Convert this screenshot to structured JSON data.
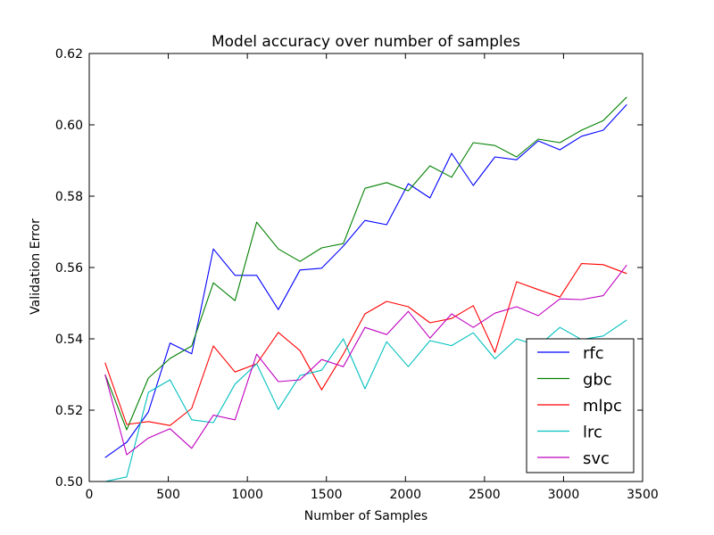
{
  "chart_data": {
    "type": "line",
    "title": "Model accuracy over number of samples",
    "xlabel": "Number of Samples",
    "ylabel": "Validation Error",
    "xlim": [
      0,
      3500
    ],
    "ylim": [
      0.5,
      0.62
    ],
    "xticks": [
      0,
      500,
      1000,
      1500,
      2000,
      2500,
      3000,
      3500
    ],
    "xtick_labels": [
      "0",
      "500",
      "1000",
      "1500",
      "2000",
      "2500",
      "3000",
      "3500"
    ],
    "yticks": [
      0.5,
      0.52,
      0.54,
      0.56,
      0.58,
      0.6,
      0.62
    ],
    "ytick_labels": [
      "0.50",
      "0.52",
      "0.54",
      "0.56",
      "0.58",
      "0.60",
      "0.62"
    ],
    "grid": false,
    "legend_position": "lower-right",
    "x": [
      100,
      237,
      374,
      511,
      648,
      785,
      922,
      1059,
      1196,
      1333,
      1470,
      1607,
      1744,
      1881,
      2018,
      2155,
      2292,
      2429,
      2566,
      2703,
      2840,
      2977,
      3114,
      3251,
      3400
    ],
    "series": [
      {
        "name": "rfc",
        "color": "#0000ff",
        "values": [
          0.5067,
          0.511,
          0.5195,
          0.5388,
          0.5358,
          0.5652,
          0.5578,
          0.5578,
          0.5482,
          0.5593,
          0.5598,
          0.566,
          0.5732,
          0.572,
          0.5835,
          0.5795,
          0.592,
          0.583,
          0.591,
          0.5902,
          0.5955,
          0.593,
          0.5968,
          0.5985,
          0.6057
        ]
      },
      {
        "name": "gbc",
        "color": "#008000",
        "values": [
          0.53,
          0.5145,
          0.529,
          0.5345,
          0.538,
          0.5557,
          0.5507,
          0.5727,
          0.5652,
          0.5617,
          0.5655,
          0.5667,
          0.5822,
          0.5838,
          0.5815,
          0.5885,
          0.5853,
          0.595,
          0.5942,
          0.591,
          0.596,
          0.595,
          0.5985,
          0.6012,
          0.6078
        ]
      },
      {
        "name": "mlpc",
        "color": "#ff0000",
        "values": [
          0.5333,
          0.516,
          0.5168,
          0.5157,
          0.5205,
          0.538,
          0.5307,
          0.533,
          0.5418,
          0.5367,
          0.5257,
          0.5357,
          0.547,
          0.5505,
          0.549,
          0.5445,
          0.5457,
          0.5493,
          0.5362,
          0.556,
          0.5538,
          0.5517,
          0.5611,
          0.5608,
          0.5583
        ]
      },
      {
        "name": "lrc",
        "color": "#00bfbf",
        "values": [
          0.5,
          0.5013,
          0.525,
          0.5285,
          0.5173,
          0.5165,
          0.5273,
          0.533,
          0.5202,
          0.5297,
          0.5312,
          0.54,
          0.526,
          0.5392,
          0.5322,
          0.5395,
          0.5381,
          0.5417,
          0.5344,
          0.54,
          0.538,
          0.5432,
          0.5398,
          0.5408,
          0.5453
        ]
      },
      {
        "name": "svc",
        "color": "#bf00bf",
        "values": [
          0.53,
          0.5075,
          0.5122,
          0.5148,
          0.5093,
          0.5186,
          0.5173,
          0.5357,
          0.528,
          0.5285,
          0.5342,
          0.5322,
          0.5432,
          0.5412,
          0.5477,
          0.5402,
          0.547,
          0.5432,
          0.5472,
          0.549,
          0.5465,
          0.5512,
          0.551,
          0.5521,
          0.5607
        ]
      }
    ]
  }
}
